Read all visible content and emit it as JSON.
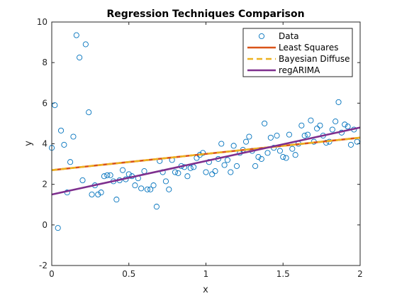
{
  "chart_data": {
    "type": "scatter",
    "title": "Regression Techniques Comparison",
    "xlabel": "x",
    "ylabel": "y",
    "xlim": [
      0,
      2
    ],
    "ylim": [
      -2,
      10
    ],
    "xticks": [
      0,
      0.5,
      1,
      1.5,
      2
    ],
    "xtick_labels": [
      "0",
      "0.5",
      "1",
      "1.5",
      "2"
    ],
    "yticks": [
      -2,
      0,
      2,
      4,
      6,
      8,
      10
    ],
    "ytick_labels": [
      "-2",
      "0",
      "2",
      "4",
      "6",
      "8",
      "10"
    ],
    "grid": false,
    "legend_position": "top-right",
    "colors": {
      "data": "#0072bd",
      "least_squares": "#d95319",
      "bayesian_diffuse": "#edb120",
      "regarima": "#7e2f8e",
      "axes": "#262626",
      "legend_border": "#262626"
    },
    "series": [
      {
        "name": "Data",
        "kind": "scatter",
        "marker": "circle-open",
        "points": [
          [
            0.0,
            3.8
          ],
          [
            0.02,
            5.9
          ],
          [
            0.04,
            -0.15
          ],
          [
            0.06,
            4.65
          ],
          [
            0.08,
            3.95
          ],
          [
            0.1,
            1.6
          ],
          [
            0.12,
            3.1
          ],
          [
            0.14,
            4.35
          ],
          [
            0.16,
            9.35
          ],
          [
            0.18,
            8.25
          ],
          [
            0.2,
            2.2
          ],
          [
            0.22,
            8.9
          ],
          [
            0.24,
            5.55
          ],
          [
            0.26,
            1.5
          ],
          [
            0.28,
            1.95
          ],
          [
            0.3,
            1.5
          ],
          [
            0.32,
            1.6
          ],
          [
            0.34,
            2.4
          ],
          [
            0.36,
            2.45
          ],
          [
            0.38,
            2.45
          ],
          [
            0.4,
            2.15
          ],
          [
            0.42,
            1.25
          ],
          [
            0.44,
            2.2
          ],
          [
            0.46,
            2.7
          ],
          [
            0.48,
            2.25
          ],
          [
            0.5,
            2.5
          ],
          [
            0.52,
            2.4
          ],
          [
            0.54,
            1.95
          ],
          [
            0.56,
            2.3
          ],
          [
            0.58,
            1.8
          ],
          [
            0.6,
            2.65
          ],
          [
            0.62,
            1.75
          ],
          [
            0.64,
            1.75
          ],
          [
            0.66,
            1.95
          ],
          [
            0.68,
            0.9
          ],
          [
            0.7,
            3.15
          ],
          [
            0.72,
            2.6
          ],
          [
            0.74,
            2.15
          ],
          [
            0.76,
            1.75
          ],
          [
            0.78,
            3.2
          ],
          [
            0.8,
            2.6
          ],
          [
            0.82,
            2.55
          ],
          [
            0.84,
            2.9
          ],
          [
            0.86,
            2.85
          ],
          [
            0.88,
            2.4
          ],
          [
            0.9,
            2.8
          ],
          [
            0.92,
            2.85
          ],
          [
            0.94,
            3.3
          ],
          [
            0.96,
            3.45
          ],
          [
            0.98,
            3.55
          ],
          [
            1.0,
            2.6
          ],
          [
            1.02,
            3.1
          ],
          [
            1.04,
            2.5
          ],
          [
            1.06,
            2.65
          ],
          [
            1.08,
            3.25
          ],
          [
            1.1,
            4.0
          ],
          [
            1.12,
            2.95
          ],
          [
            1.14,
            3.2
          ],
          [
            1.16,
            2.6
          ],
          [
            1.18,
            3.9
          ],
          [
            1.2,
            2.9
          ],
          [
            1.22,
            3.55
          ],
          [
            1.24,
            3.7
          ],
          [
            1.26,
            4.1
          ],
          [
            1.28,
            4.35
          ],
          [
            1.3,
            3.65
          ],
          [
            1.32,
            2.9
          ],
          [
            1.34,
            3.35
          ],
          [
            1.36,
            3.25
          ],
          [
            1.38,
            5.0
          ],
          [
            1.4,
            3.55
          ],
          [
            1.42,
            4.3
          ],
          [
            1.44,
            3.8
          ],
          [
            1.46,
            4.4
          ],
          [
            1.48,
            3.65
          ],
          [
            1.5,
            3.35
          ],
          [
            1.52,
            3.3
          ],
          [
            1.54,
            4.45
          ],
          [
            1.56,
            3.75
          ],
          [
            1.58,
            3.45
          ],
          [
            1.6,
            4.0
          ],
          [
            1.62,
            4.9
          ],
          [
            1.64,
            4.4
          ],
          [
            1.66,
            4.45
          ],
          [
            1.68,
            5.15
          ],
          [
            1.7,
            4.1
          ],
          [
            1.72,
            4.75
          ],
          [
            1.74,
            4.9
          ],
          [
            1.76,
            4.4
          ],
          [
            1.78,
            4.05
          ],
          [
            1.8,
            4.1
          ],
          [
            1.82,
            4.7
          ],
          [
            1.84,
            5.1
          ],
          [
            1.86,
            6.05
          ],
          [
            1.88,
            4.55
          ],
          [
            1.9,
            4.95
          ],
          [
            1.92,
            4.85
          ],
          [
            1.94,
            3.95
          ],
          [
            1.96,
            4.7
          ],
          [
            1.98,
            4.1
          ]
        ]
      },
      {
        "name": "Least Squares",
        "kind": "line",
        "style": "solid",
        "x": [
          0,
          2
        ],
        "y": [
          2.7,
          4.3
        ]
      },
      {
        "name": "Bayesian Diffuse",
        "kind": "line",
        "style": "dashed",
        "x": [
          0,
          2
        ],
        "y": [
          2.7,
          4.3
        ]
      },
      {
        "name": "regARIMA",
        "kind": "line",
        "style": "solid",
        "x": [
          0,
          2
        ],
        "y": [
          1.5,
          4.8
        ]
      }
    ]
  }
}
